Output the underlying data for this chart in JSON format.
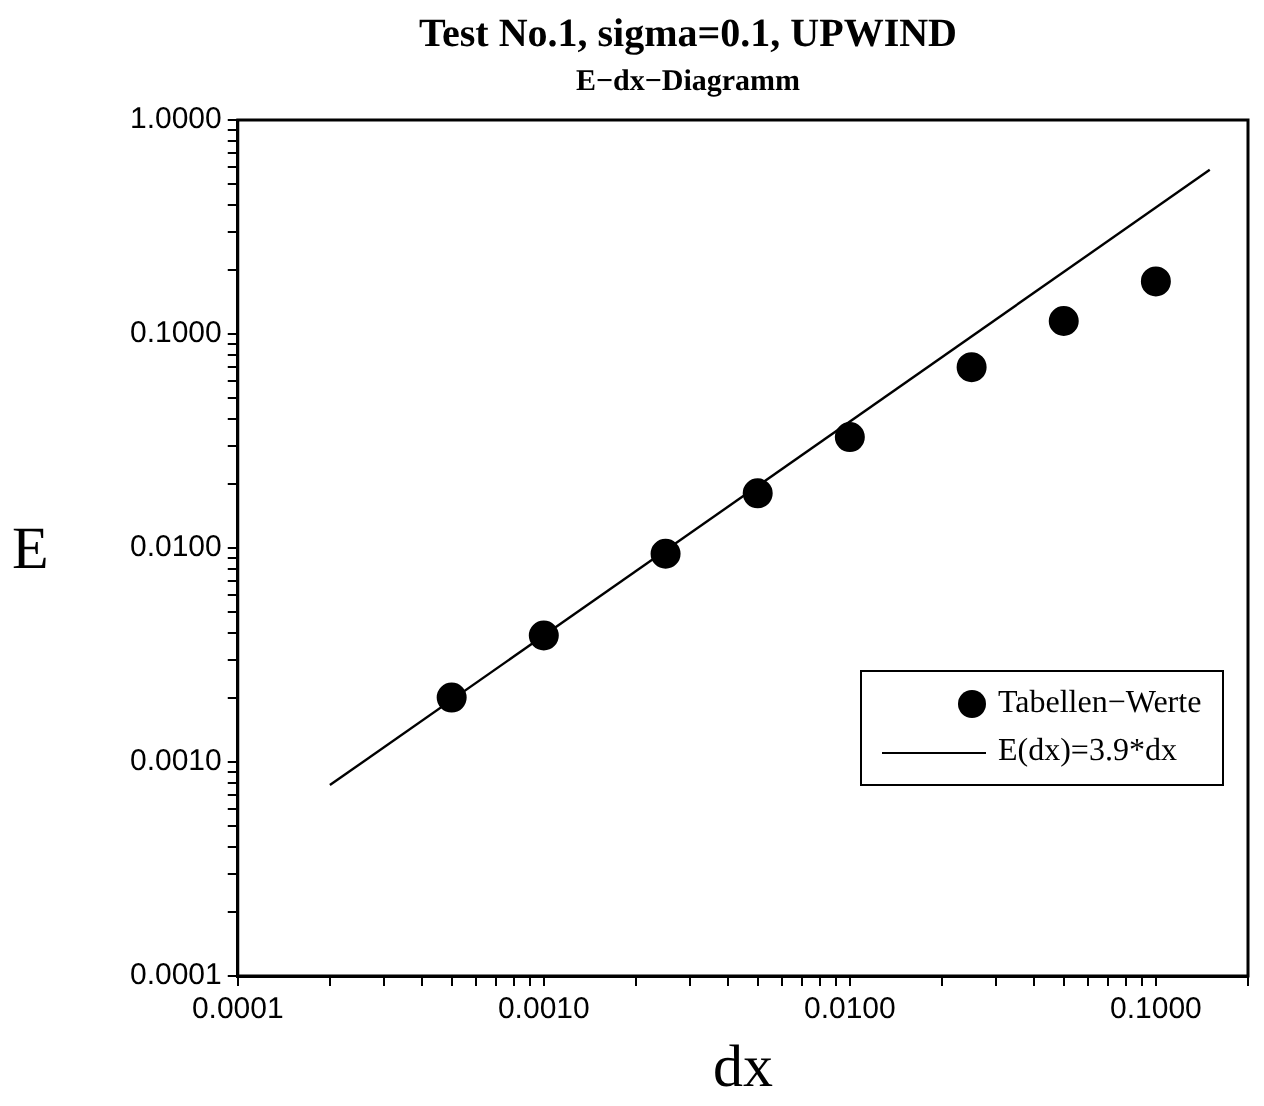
{
  "chart_data": {
    "type": "scatter",
    "title": "Test No.1, sigma=0.1, UPWIND",
    "subtitle": "E−dx−Diagramm",
    "xlabel": "dx",
    "ylabel": "E",
    "log": "xy",
    "grid": false,
    "legend": "bottom right",
    "xlim": [
      0.0001,
      0.2
    ],
    "ylim": [
      0.0001,
      1
    ],
    "xticks": [
      {
        "value": 0.0001,
        "label": "0.0001"
      },
      {
        "value": 0.0002,
        "label": null
      },
      {
        "value": 0.0003,
        "label": null
      },
      {
        "value": 0.0004,
        "label": null
      },
      {
        "value": 0.0005,
        "label": null
      },
      {
        "value": 0.0006,
        "label": null
      },
      {
        "value": 0.0007,
        "label": null
      },
      {
        "value": 0.0008,
        "label": null
      },
      {
        "value": 0.0009,
        "label": null
      },
      {
        "value": 0.001,
        "label": "0.0010"
      },
      {
        "value": 0.002,
        "label": null
      },
      {
        "value": 0.003,
        "label": null
      },
      {
        "value": 0.004,
        "label": null
      },
      {
        "value": 0.005,
        "label": null
      },
      {
        "value": 0.006,
        "label": null
      },
      {
        "value": 0.007,
        "label": null
      },
      {
        "value": 0.008,
        "label": null
      },
      {
        "value": 0.009,
        "label": null
      },
      {
        "value": 0.01,
        "label": "0.0100"
      },
      {
        "value": 0.02,
        "label": null
      },
      {
        "value": 0.03,
        "label": null
      },
      {
        "value": 0.04,
        "label": null
      },
      {
        "value": 0.05,
        "label": null
      },
      {
        "value": 0.06,
        "label": null
      },
      {
        "value": 0.07,
        "label": null
      },
      {
        "value": 0.08,
        "label": null
      },
      {
        "value": 0.09,
        "label": null
      },
      {
        "value": 0.1,
        "label": "0.1000"
      },
      {
        "value": 0.2,
        "label": null
      }
    ],
    "yticks": [
      {
        "value": 0.0001,
        "label": "0.0001"
      },
      {
        "value": 0.0002,
        "label": null
      },
      {
        "value": 0.0003,
        "label": null
      },
      {
        "value": 0.0004,
        "label": null
      },
      {
        "value": 0.0005,
        "label": null
      },
      {
        "value": 0.0006,
        "label": null
      },
      {
        "value": 0.0007,
        "label": null
      },
      {
        "value": 0.0008,
        "label": null
      },
      {
        "value": 0.0009,
        "label": null
      },
      {
        "value": 0.001,
        "label": "0.0010"
      },
      {
        "value": 0.002,
        "label": null
      },
      {
        "value": 0.003,
        "label": null
      },
      {
        "value": 0.004,
        "label": null
      },
      {
        "value": 0.005,
        "label": null
      },
      {
        "value": 0.006,
        "label": null
      },
      {
        "value": 0.007,
        "label": null
      },
      {
        "value": 0.008,
        "label": null
      },
      {
        "value": 0.009,
        "label": null
      },
      {
        "value": 0.01,
        "label": "0.0100"
      },
      {
        "value": 0.02,
        "label": null
      },
      {
        "value": 0.03,
        "label": null
      },
      {
        "value": 0.04,
        "label": null
      },
      {
        "value": 0.05,
        "label": null
      },
      {
        "value": 0.06,
        "label": null
      },
      {
        "value": 0.07,
        "label": null
      },
      {
        "value": 0.08,
        "label": null
      },
      {
        "value": 0.09,
        "label": null
      },
      {
        "value": 0.1,
        "label": "0.1000"
      },
      {
        "value": 0.2,
        "label": null
      },
      {
        "value": 0.3,
        "label": null
      },
      {
        "value": 0.4,
        "label": null
      },
      {
        "value": 0.5,
        "label": null
      },
      {
        "value": 0.6,
        "label": null
      },
      {
        "value": 0.7,
        "label": null
      },
      {
        "value": 0.8,
        "label": null
      },
      {
        "value": 0.9,
        "label": null
      },
      {
        "value": 1,
        "label": "1.0000"
      }
    ],
    "series": [
      {
        "name": "Tabellen−Werte",
        "type": "scatter",
        "marker": "circle",
        "color": "#000000",
        "x": [
          0.0005,
          0.001,
          0.0025,
          0.005,
          0.01,
          0.025,
          0.05,
          0.1
        ],
        "values": [
          0.002,
          0.0039,
          0.0094,
          0.018,
          0.033,
          0.07,
          0.115,
          0.176
        ]
      },
      {
        "name": "E(dx)=3.9*dx",
        "type": "line",
        "marker": "none",
        "line_style": "solid",
        "color": "#000000",
        "x": [
          0.0002,
          0.15
        ],
        "values": [
          0.00078,
          0.585
        ]
      }
    ]
  }
}
